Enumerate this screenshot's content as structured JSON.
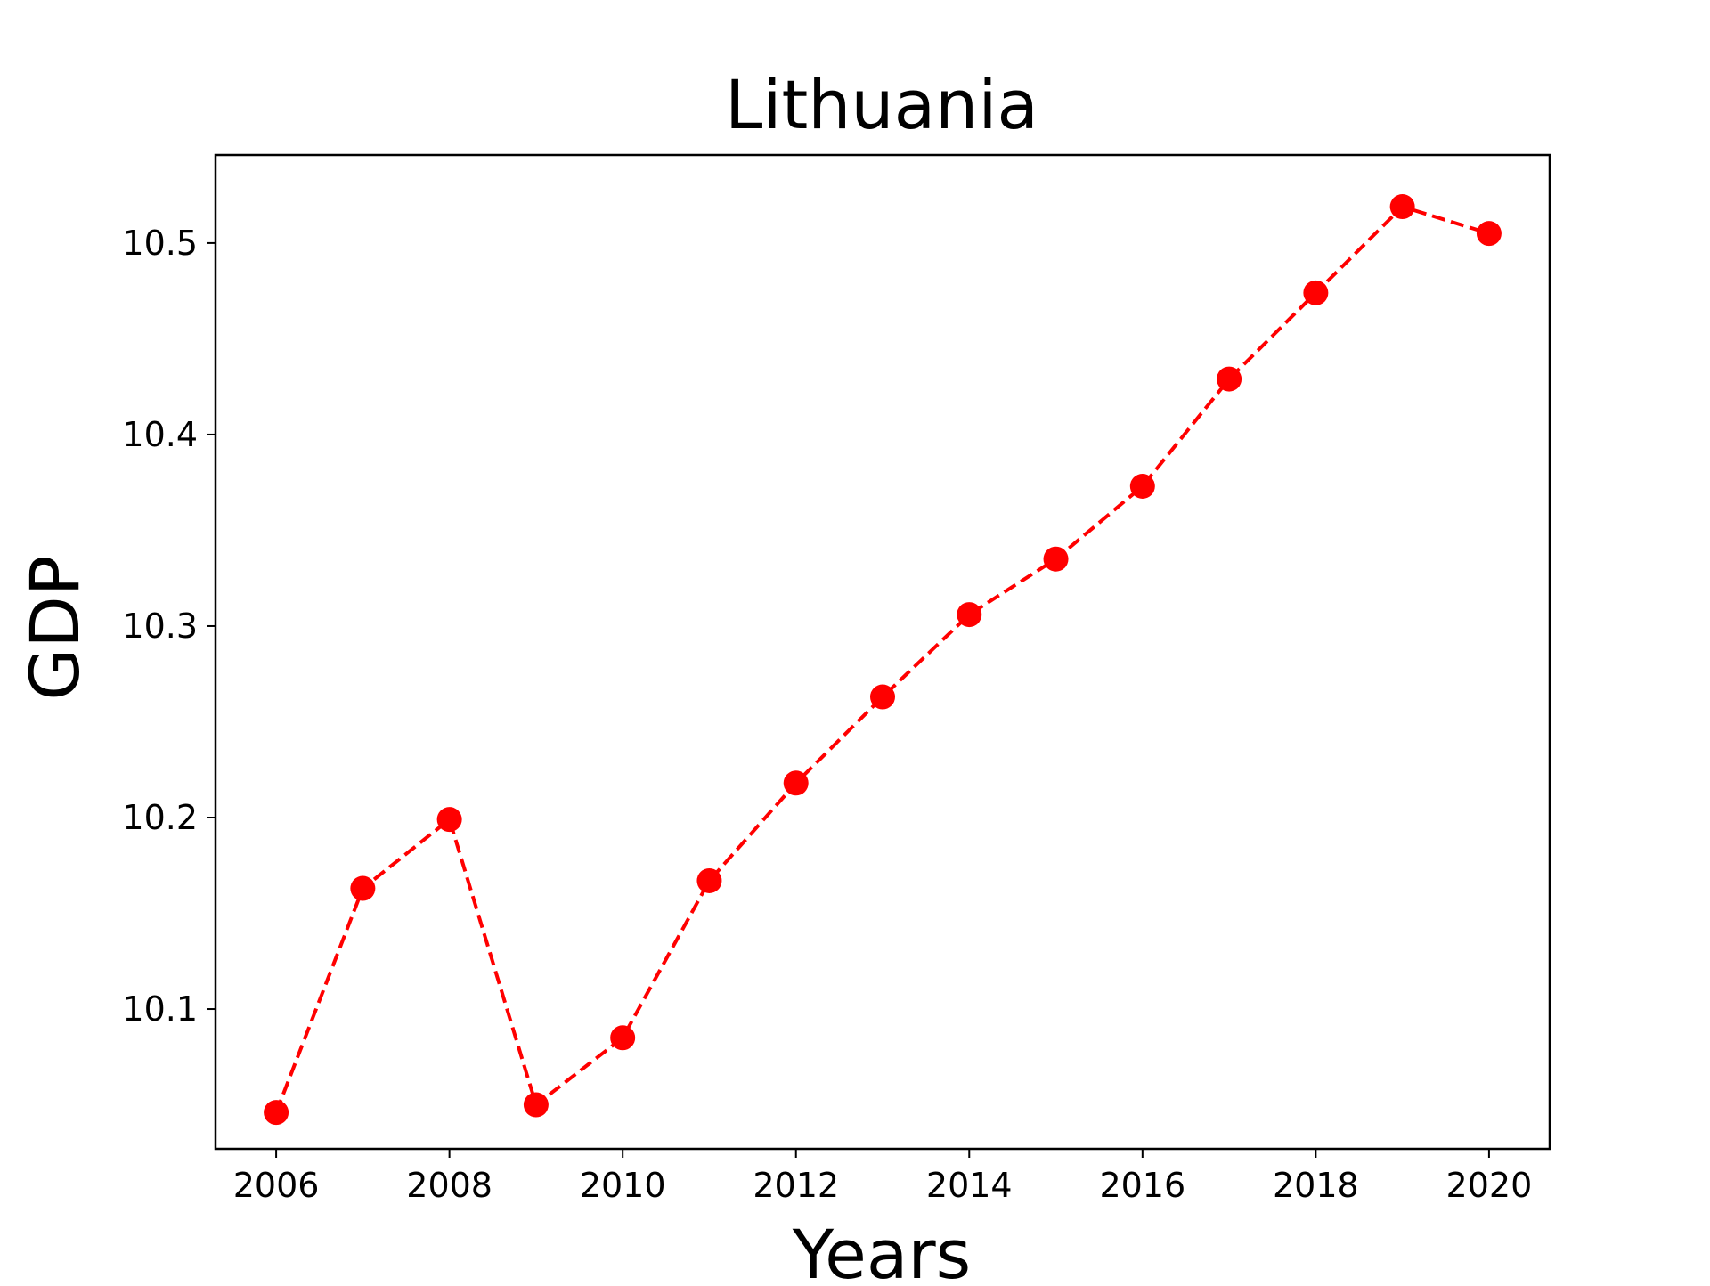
{
  "chart_data": {
    "type": "line",
    "title": "Lithuania",
    "xlabel": "Years",
    "ylabel": "GDP",
    "x": [
      2006,
      2007,
      2008,
      2009,
      2010,
      2011,
      2012,
      2013,
      2014,
      2015,
      2016,
      2017,
      2018,
      2019,
      2020
    ],
    "series": [
      {
        "values": [
          10.046,
          10.163,
          10.199,
          10.05,
          10.085,
          10.167,
          10.218,
          10.263,
          10.306,
          10.335,
          10.373,
          10.429,
          10.474,
          10.519,
          10.505
        ],
        "color": "#ff0000",
        "line_style": "dashed",
        "marker": "circle"
      }
    ],
    "xticks": [
      "2006",
      "2008",
      "2010",
      "2012",
      "2014",
      "2016",
      "2018",
      "2020"
    ],
    "yticks": [
      "10.1",
      "10.2",
      "10.3",
      "10.4",
      "10.5"
    ],
    "xlim": [
      2005.3,
      2020.7
    ],
    "ylim": [
      10.027,
      10.546
    ],
    "grid": false,
    "legend": "none"
  }
}
